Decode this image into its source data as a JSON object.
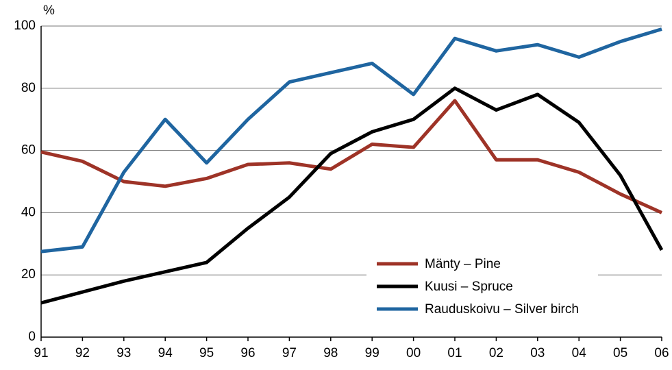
{
  "chart_data": {
    "type": "line",
    "y_unit_label": "%",
    "categories": [
      "91",
      "92",
      "93",
      "94",
      "95",
      "96",
      "97",
      "98",
      "99",
      "00",
      "01",
      "02",
      "03",
      "04",
      "05",
      "06"
    ],
    "series": [
      {
        "name": "Mänty – Pine",
        "color": "#9e3327",
        "values": [
          59.5,
          56.5,
          50,
          48.5,
          51,
          55.5,
          56,
          54,
          62,
          61,
          76,
          57,
          57,
          53,
          46,
          40
        ]
      },
      {
        "name": "Kuusi – Spruce",
        "color": "#000000",
        "values": [
          11,
          14.5,
          18,
          21,
          24,
          35,
          45,
          59,
          66,
          70,
          80,
          73,
          78,
          69,
          52,
          28
        ]
      },
      {
        "name": "Rauduskoivu – Silver birch",
        "color": "#1f65a0",
        "values": [
          27.5,
          29,
          53,
          70,
          56,
          70,
          82,
          85,
          88,
          78,
          96,
          92,
          94,
          90,
          95,
          99
        ]
      }
    ],
    "ylim": [
      0,
      100
    ],
    "yticks": [
      0,
      20,
      40,
      60,
      80,
      100
    ],
    "grid": true,
    "legend": "lower right"
  }
}
